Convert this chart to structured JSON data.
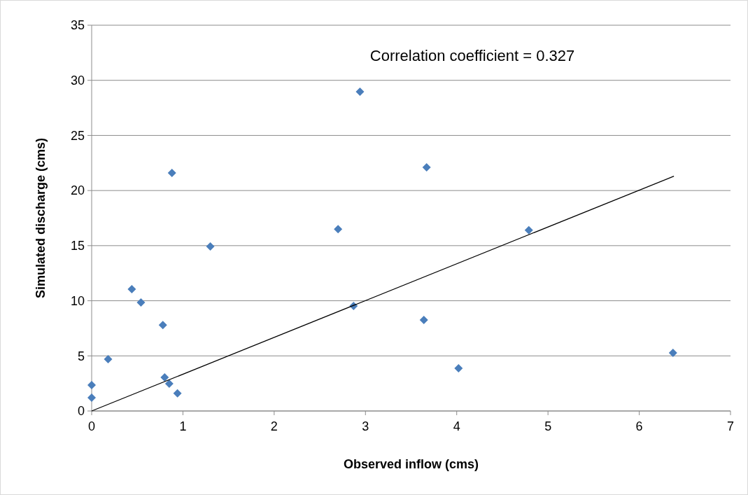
{
  "chart_data": {
    "type": "scatter",
    "xlabel": "Observed inflow (cms)",
    "ylabel": "Simulated discharge (cms)",
    "annotations": [
      "Correlation coefficient = 0.327"
    ],
    "xlim": [
      0,
      7
    ],
    "xticks": [
      0,
      1,
      2,
      3,
      4,
      5,
      6,
      7
    ],
    "ylim": [
      0,
      35
    ],
    "yticks": [
      0,
      5,
      10,
      15,
      20,
      25,
      30,
      35
    ],
    "grid": "y",
    "marker": "diamond",
    "series": [
      {
        "color": "#4a7ebb",
        "x": [
          0,
          0,
          0.18,
          0.44,
          0.54,
          0.78,
          0.8,
          0.85,
          0.94,
          0.88,
          1.3,
          2.7,
          2.87,
          2.94,
          3.64,
          3.67,
          4.02,
          4.79,
          6.37
        ],
        "values": [
          1.2,
          2.35,
          4.7,
          11.05,
          9.85,
          7.8,
          3.05,
          2.48,
          1.6,
          21.6,
          14.93,
          16.5,
          9.53,
          28.97,
          8.26,
          22.1,
          3.88,
          16.4,
          5.27
        ]
      },
      {
        "type": "line",
        "color": "#000000",
        "marker": "none",
        "x": [
          0,
          6.38
        ],
        "values": [
          0,
          21.3
        ]
      }
    ]
  }
}
